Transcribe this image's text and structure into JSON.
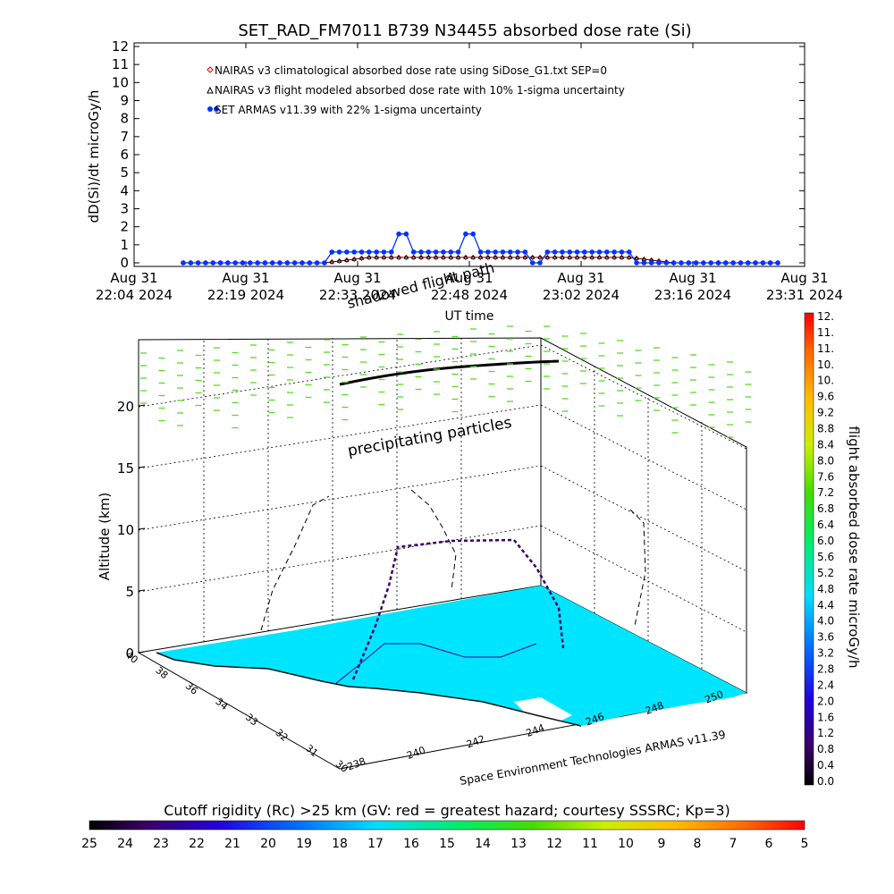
{
  "chart_data": [
    {
      "type": "line",
      "title": "SET_RAD_FM7011  B739 N34455 absorbed dose rate (Si)",
      "xlabel": "UT time",
      "ylabel": "dD(Si)/dt microGy/h",
      "ylim": [
        0,
        12
      ],
      "yticks": [
        "0",
        "1",
        "2",
        "3",
        "4",
        "5",
        "6",
        "7",
        "8",
        "9",
        "10",
        "11",
        "12"
      ],
      "xticks": [
        {
          "line1": "Aug 31",
          "line2": "22:04 2024"
        },
        {
          "line1": "Aug 31",
          "line2": "22:19 2024"
        },
        {
          "line1": "Aug 31",
          "line2": "22:33 2024"
        },
        {
          "line1": "Aug 31",
          "line2": "22:48 2024"
        },
        {
          "line1": "Aug 31",
          "line2": "23:02 2024"
        },
        {
          "line1": "Aug 31",
          "line2": "23:16 2024"
        },
        {
          "line1": "Aug 31",
          "line2": "23:31 2024"
        }
      ],
      "legend": [
        "NAIRAS v3 climatological absorbed dose rate using SiDose_G1.txt SEP=0",
        "NAIRAS v3 flight modeled absorbed dose rate with 10% 1-sigma uncertainty",
        "SET ARMAS v11.39 with 22% 1-sigma uncertainty"
      ],
      "legend_position": "top-left",
      "series": [
        {
          "name": "NAIRAS v3 climatological absorbed dose rate using SiDose_G1.txt SEP=0",
          "color": "#dd0000",
          "marker": "diamond",
          "values": [
            0,
            0,
            0,
            0,
            0,
            0,
            0,
            0,
            0,
            0,
            0,
            0,
            0,
            0,
            0,
            0,
            0,
            0,
            0,
            0,
            0.05,
            0.1,
            0.15,
            0.2,
            0.25,
            0.3,
            0.3,
            0.3,
            0.3,
            0.3,
            0.3,
            0.3,
            0.3,
            0.3,
            0.3,
            0.3,
            0.3,
            0.3,
            0.3,
            0.3,
            0.3,
            0.3,
            0.3,
            0.3,
            0.3,
            0.3,
            0.3,
            0.3,
            0.3,
            0.3,
            0.3,
            0.3,
            0.3,
            0.3,
            0.3,
            0.3,
            0.3,
            0.3,
            0.3,
            0.3,
            0.3,
            0.25,
            0.2,
            0.15,
            0.1,
            0.05,
            0,
            0,
            0,
            0,
            0,
            0,
            0,
            0,
            0,
            0,
            0,
            0,
            0,
            0,
            0
          ]
        },
        {
          "name": "NAIRAS v3 flight modeled absorbed dose rate with 10% 1-sigma uncertainty",
          "color": "#000000",
          "marker": "triangle",
          "values": [
            0,
            0,
            0,
            0,
            0,
            0,
            0,
            0,
            0,
            0,
            0,
            0,
            0,
            0,
            0,
            0,
            0,
            0,
            0,
            0,
            0.05,
            0.1,
            0.15,
            0.2,
            0.25,
            0.3,
            0.3,
            0.3,
            0.3,
            0.3,
            0.3,
            0.3,
            0.3,
            0.3,
            0.3,
            0.3,
            0.3,
            0.3,
            0.3,
            0.3,
            0.3,
            0.3,
            0.3,
            0.3,
            0.3,
            0.3,
            0.3,
            0.3,
            0.3,
            0.3,
            0.3,
            0.3,
            0.3,
            0.3,
            0.3,
            0.3,
            0.3,
            0.3,
            0.3,
            0.3,
            0.3,
            0.25,
            0.2,
            0.15,
            0.1,
            0.05,
            0,
            0,
            0,
            0,
            0,
            0,
            0,
            0,
            0,
            0,
            0,
            0,
            0,
            0,
            0
          ]
        },
        {
          "name": "SET ARMAS v11.39 with 22% 1-sigma uncertainty",
          "color": "#0033ff",
          "marker": "dot",
          "values": [
            0,
            0,
            0,
            0,
            0,
            0,
            0,
            0,
            0,
            0,
            0,
            0,
            0,
            0,
            0,
            0,
            0,
            0,
            0,
            0,
            0.6,
            0.6,
            0.6,
            0.6,
            0.6,
            0.6,
            0.6,
            0.6,
            0.6,
            1.6,
            1.6,
            0.6,
            0.6,
            0.6,
            0.6,
            0.6,
            0.6,
            0.6,
            1.6,
            1.6,
            0.6,
            0.6,
            0.6,
            0.6,
            0.6,
            0.6,
            0.6,
            0,
            0,
            0.6,
            0.6,
            0.6,
            0.6,
            0.6,
            0.6,
            0.6,
            0.6,
            0.6,
            0.6,
            0.6,
            0.6,
            0,
            0,
            0,
            0,
            0,
            0,
            0,
            0,
            0,
            0,
            0,
            0,
            0,
            0,
            0,
            0,
            0,
            0,
            0,
            0
          ]
        }
      ]
    },
    {
      "type": "surface3d",
      "ylabel": "Altitude (km)",
      "zticks": [
        "0",
        "5",
        "10",
        "15",
        "20"
      ],
      "lat_ticks": [
        "40",
        "38",
        "36",
        "34",
        "33",
        "32",
        "31",
        "30"
      ],
      "lon_ticks": [
        "238",
        "240",
        "242",
        "244",
        "246",
        "248",
        "250"
      ],
      "annotations": {
        "shadow": "shadowed flight path",
        "particles": "precipitating particles",
        "credit": "Space Environment Technologies ARMAS v11.39"
      },
      "colorbar_right": {
        "label": "flight absorbed dose rate microGy/h",
        "ticks": [
          "0.0",
          "0.4",
          "0.8",
          "1.2",
          "1.6",
          "2.0",
          "2.4",
          "2.8",
          "3.2",
          "3.6",
          "4.0",
          "4.4",
          "4.8",
          "5.2",
          "5.6",
          "6.0",
          "6.4",
          "6.8",
          "7.2",
          "7.6",
          "8.0",
          "8.4",
          "8.8",
          "9.2",
          "9.6",
          "10.",
          "10.",
          "11.",
          "11.",
          "12."
        ]
      },
      "colorbar_bottom": {
        "label": "Cutoff rigidity (Rc) >25 km (GV: red = greatest hazard; courtesy SSSRC; Kp=3)",
        "ticks": [
          "25",
          "24",
          "23",
          "22",
          "21",
          "20",
          "19",
          "18",
          "17",
          "16",
          "15",
          "14",
          "13",
          "12",
          "11",
          "10",
          "9",
          "8",
          "7",
          "6",
          "5"
        ]
      }
    }
  ]
}
